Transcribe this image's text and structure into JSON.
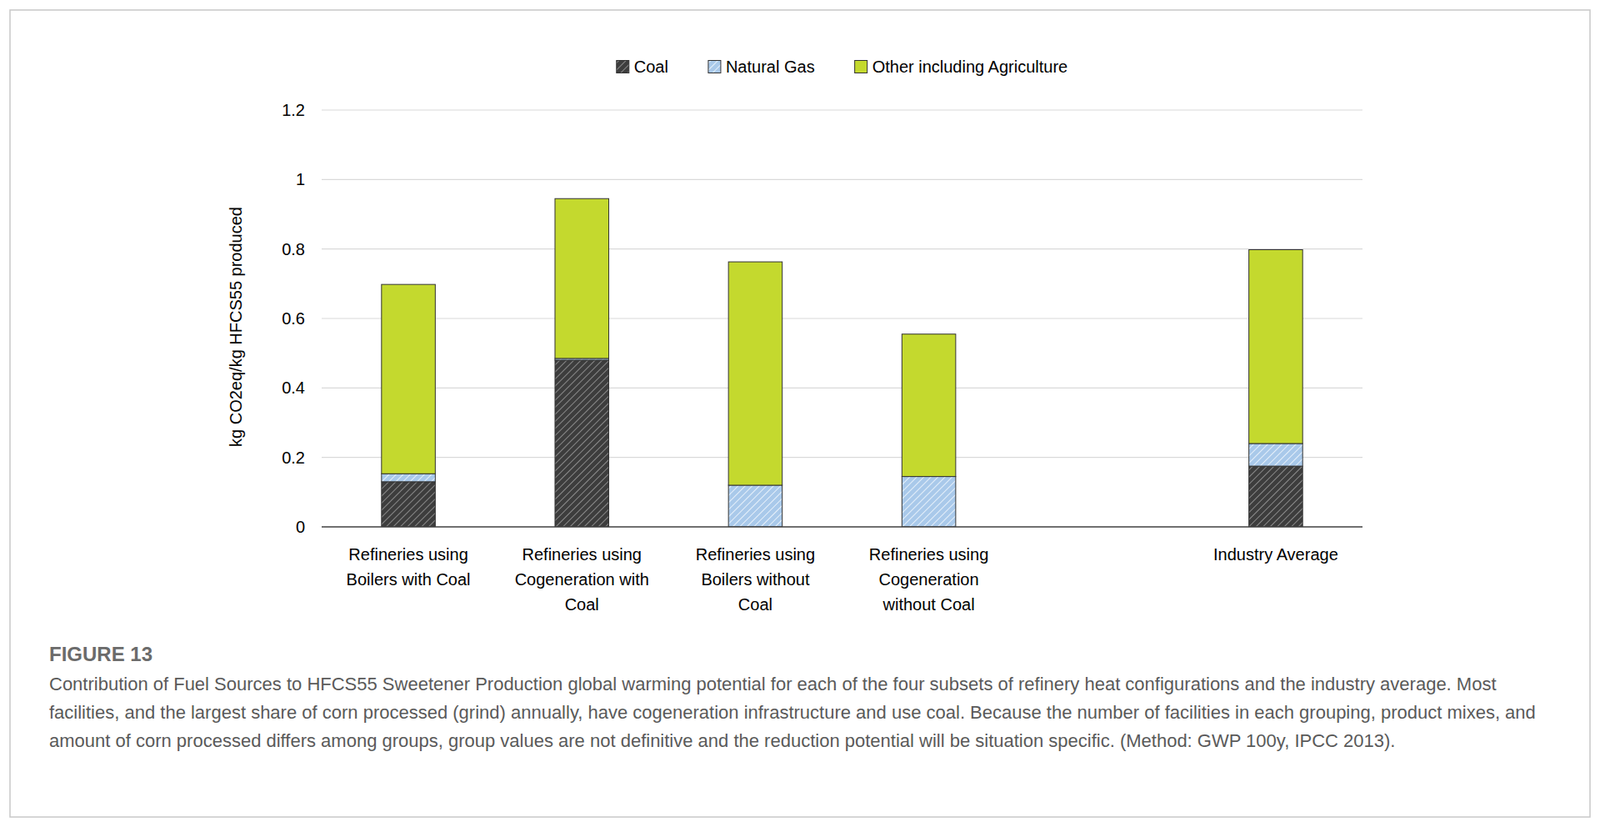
{
  "chart_data": {
    "type": "bar",
    "stacked": true,
    "grid": true,
    "legend": "top",
    "title": "FIGURE 13",
    "caption": "Contribution of Fuel Sources to HFCS55 Sweetener Production global warming potential for each of the four subsets of refinery heat configurations and the industry average. Most facilities, and the largest share of corn processed (grind) annually, have cogeneration infrastructure and use coal. Because the number of facilities in each grouping, product mixes, and amount of corn processed differs among groups, group values are not definitive and the reduction potential will be situation specific. (Method: GWP 100y, IPCC 2013).",
    "y_label": "kg CO2eq/kg HFCS55 produced",
    "categories": [
      "Refineries using Boilers with Coal",
      "Refineries using Cogeneration with Coal",
      "Refineries using Boilers without Coal",
      "Refineries using Cogeneration without Coal",
      null,
      "Industry Average"
    ],
    "series": [
      {
        "name": "Coal",
        "color": "#3d3d3d",
        "values": [
          0.13,
          0.48,
          0,
          0,
          null,
          0.175
        ]
      },
      {
        "name": "Natural Gas",
        "color": "#a9c9ea",
        "values": [
          0.023,
          0.005,
          0.12,
          0.145,
          null,
          0.065
        ]
      },
      {
        "name": "Other including Agriculture",
        "color": "#c4d92e",
        "values": [
          0.545,
          0.46,
          0.643,
          0.41,
          null,
          0.558
        ]
      }
    ],
    "ylim": [
      0,
      1.2
    ],
    "yticks": [
      0,
      0.2,
      0.4,
      0.6,
      0.8,
      1,
      1.2
    ]
  }
}
